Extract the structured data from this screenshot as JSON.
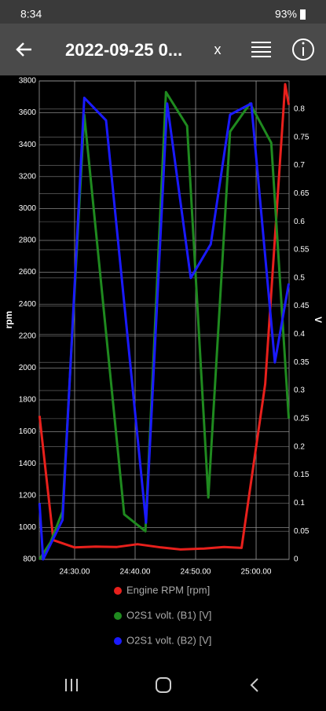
{
  "status_bar": {
    "time": "8:34",
    "battery": "93%"
  },
  "header": {
    "title": "2022-09-25 0...",
    "close": "x"
  },
  "chart_data": {
    "type": "line",
    "ylabel": "rpm",
    "y2label": "V",
    "xlim": [
      1464.16,
      1505.45
    ],
    "xticks": [
      {
        "value": 1470,
        "label": "24:30.00"
      },
      {
        "value": 1480,
        "label": "24:40.00"
      },
      {
        "value": 1490,
        "label": "24:50.00"
      },
      {
        "value": 1500,
        "label": "25:00.00"
      }
    ],
    "ylim": [
      800,
      3800
    ],
    "yticks": [
      800,
      1000,
      1200,
      1400,
      1600,
      1800,
      2000,
      2200,
      2400,
      2600,
      2800,
      3000,
      3200,
      3400,
      3600,
      3800
    ],
    "y2lim": [
      0,
      0.85
    ],
    "y2ticks": [
      0,
      0.05,
      0.1,
      0.15,
      0.2,
      0.25,
      0.3,
      0.35,
      0.4,
      0.45,
      0.5,
      0.55,
      0.6,
      0.65,
      0.7,
      0.75,
      0.8
    ],
    "grid": true,
    "series": [
      {
        "name": "Engine RPM [rpm]",
        "color": "#e8201c",
        "x": [
          1464.2,
          1466.5,
          1470,
          1473.5,
          1477,
          1480.4,
          1484.3,
          1487.5,
          1491.4,
          1494.7,
          1497.6,
          1501.5,
          1504.8,
          1505.4
        ],
        "values": [
          1700,
          920,
          875,
          880,
          878,
          895,
          875,
          862,
          868,
          878,
          872,
          1900,
          3780,
          3650
        ]
      },
      {
        "name": "O2S1 volt. (B1) [V]",
        "color": "#1f8a1f",
        "axis": "y2",
        "x": [
          1464.2,
          1466,
          1468,
          1471.6,
          1478.2,
          1481.7,
          1485.1,
          1488.6,
          1492.1,
          1495.7,
          1499,
          1502.5,
          1505.4
        ],
        "values": [
          0,
          0.03,
          0.085,
          0.79,
          0.08,
          0.05,
          0.83,
          0.77,
          0.11,
          0.76,
          0.81,
          0.74,
          0.25
        ]
      },
      {
        "name": "O2S1 volt. (B2) [V]",
        "color": "#1a1aff",
        "axis": "y2",
        "x": [
          1464.2,
          1464.8,
          1468,
          1471.6,
          1475.2,
          1481.8,
          1485.3,
          1489.2,
          1492.5,
          1495.7,
          1499.2,
          1503.1,
          1505.4
        ],
        "values": [
          0.1,
          0,
          0.07,
          0.82,
          0.78,
          0.065,
          0.81,
          0.5,
          0.56,
          0.79,
          0.81,
          0.35,
          0.49
        ]
      }
    ]
  }
}
